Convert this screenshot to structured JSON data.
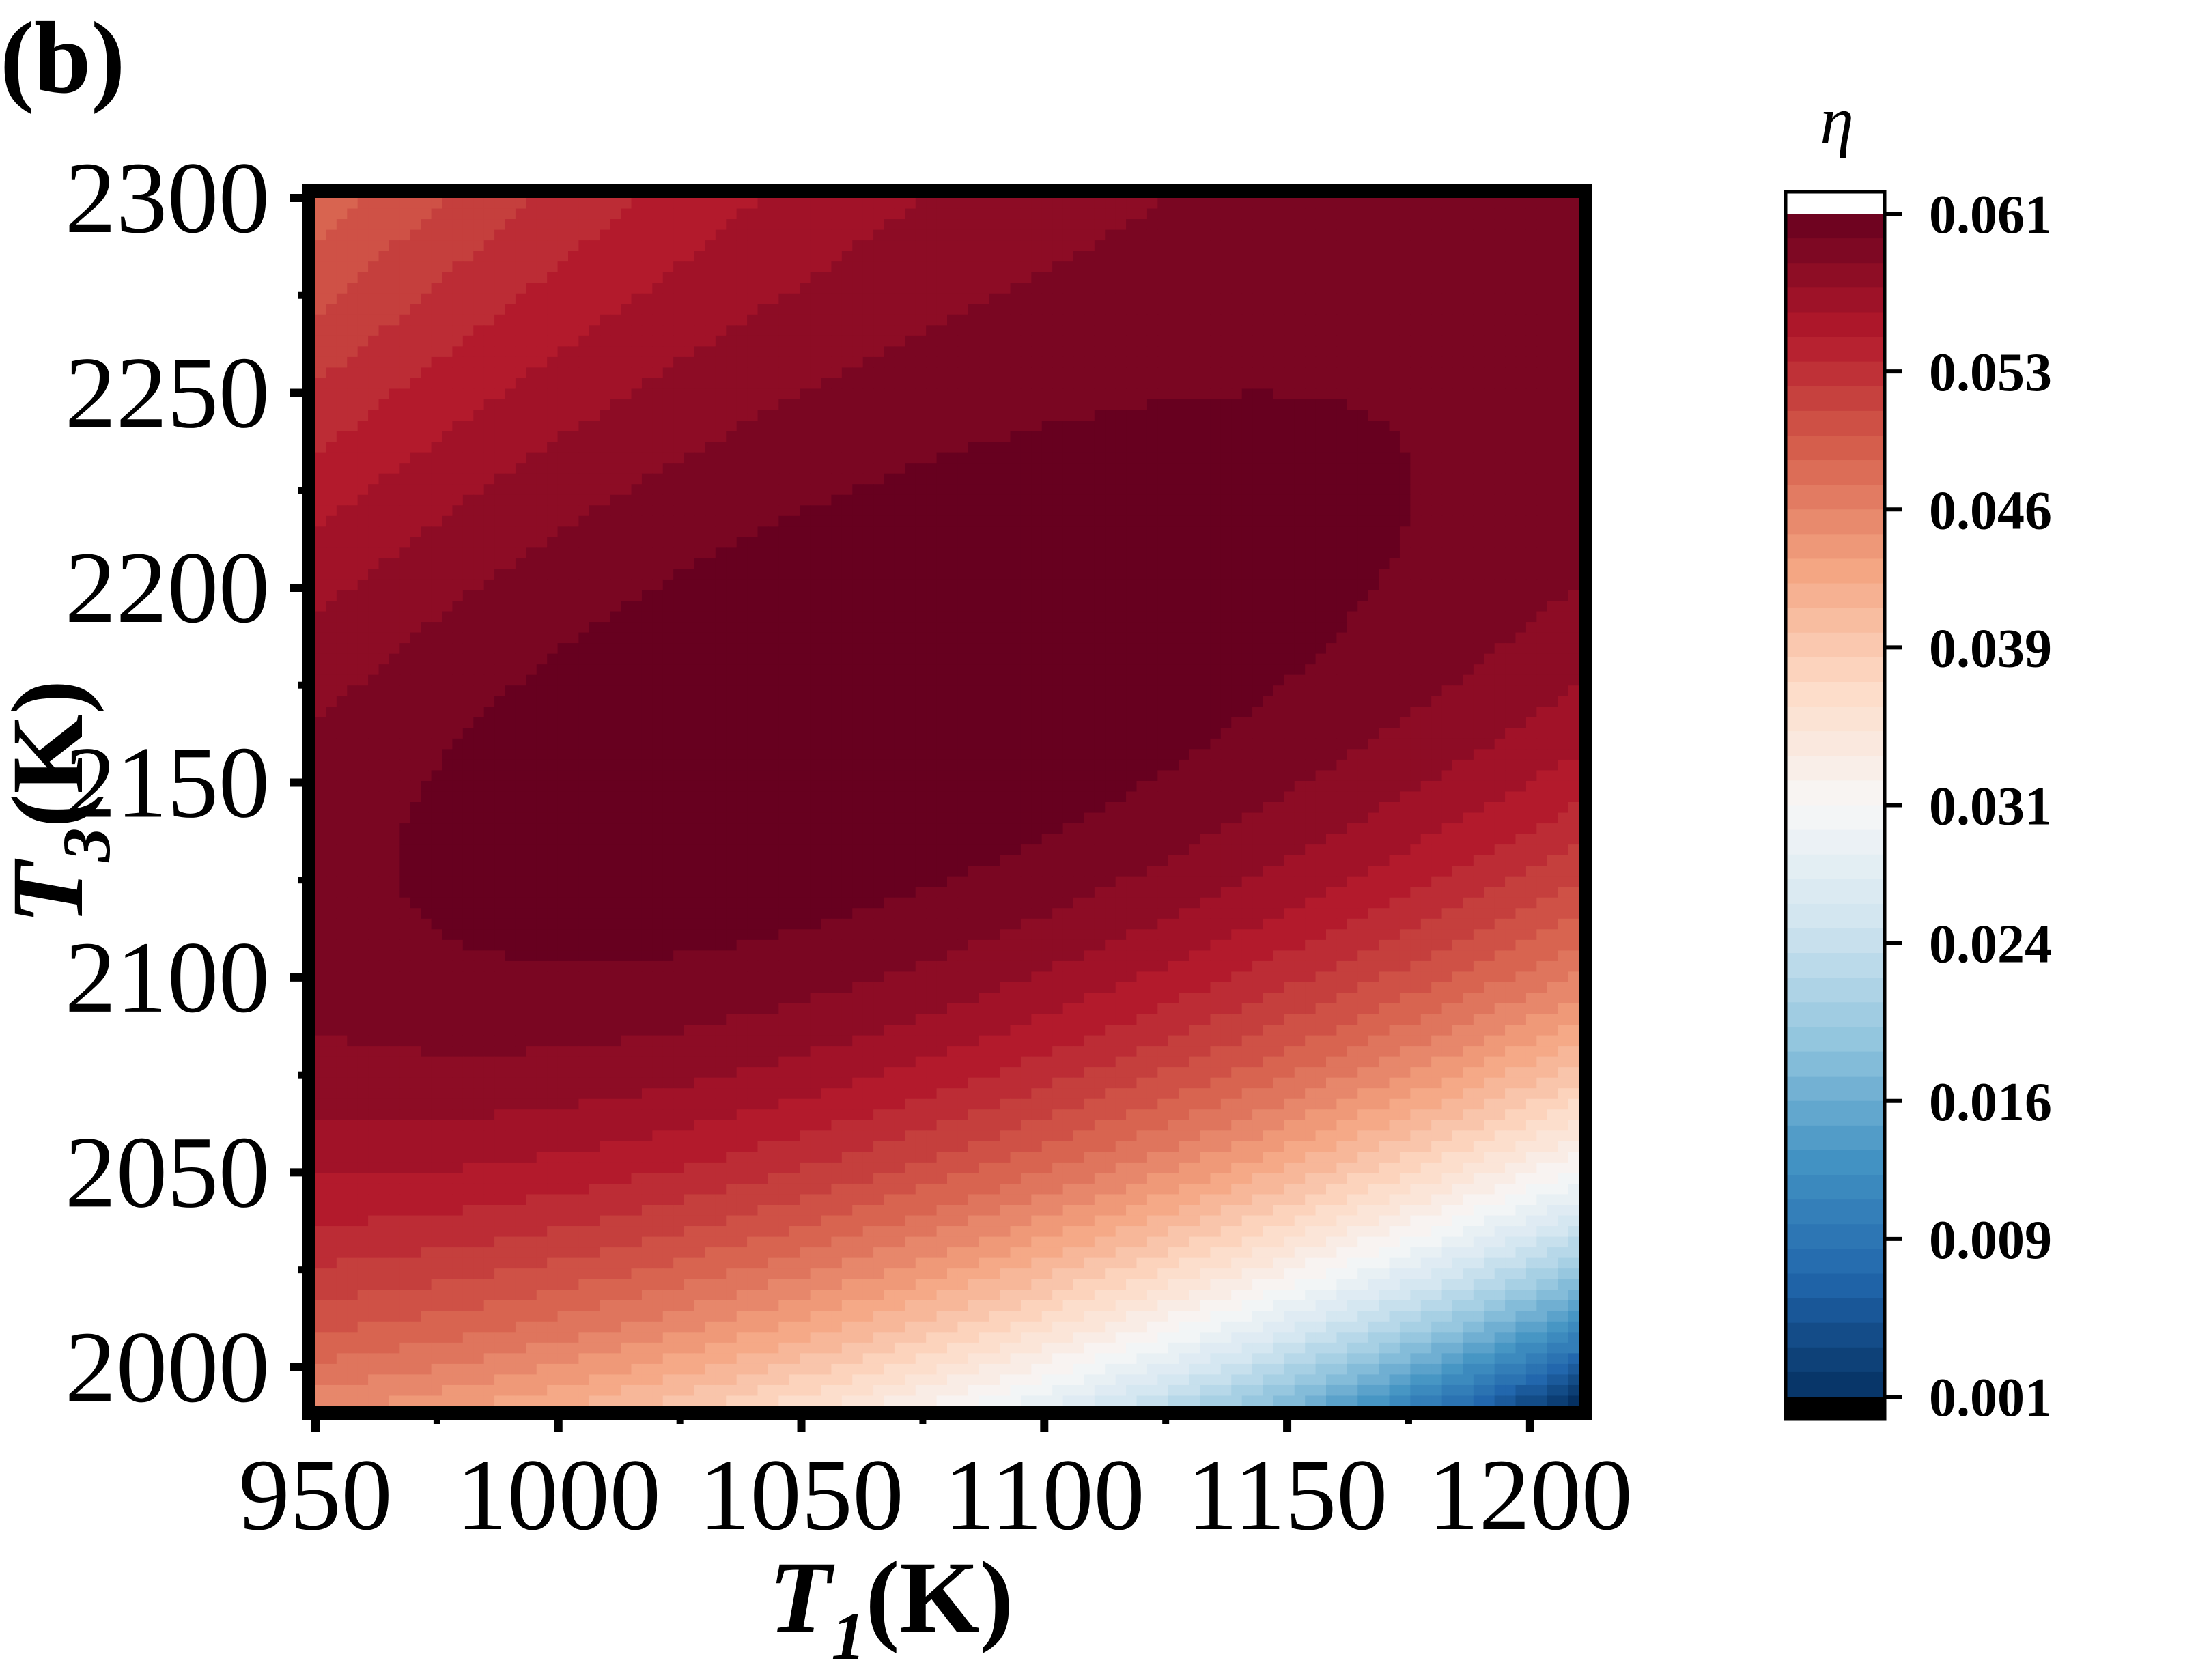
{
  "panel_label": "(b)",
  "chart_data": {
    "type": "heatmap",
    "title": "",
    "xlabel": {
      "var": "T",
      "sub": "1",
      "unit": "(K)"
    },
    "ylabel": {
      "var": "T",
      "sub": "3",
      "unit": "(K)"
    },
    "xlim": [
      950,
      1210
    ],
    "ylim": [
      1990,
      2300
    ],
    "x_ticks": [
      "950",
      "1000",
      "1050",
      "1100",
      "1150",
      "1200"
    ],
    "y_ticks": [
      "2000",
      "2050",
      "2100",
      "2150",
      "2200",
      "2250",
      "2300"
    ],
    "z_label": "η",
    "z_range": [
      0.001,
      0.061
    ],
    "colorbar_ticks": [
      "0.001",
      "0.009",
      "0.016",
      "0.024",
      "0.031",
      "0.039",
      "0.046",
      "0.053",
      "0.061"
    ],
    "peak": {
      "x": 1060,
      "y": 2165,
      "value": 0.061
    },
    "corners": [
      {
        "x": 950,
        "y": 1990,
        "value": 0.045
      },
      {
        "x": 950,
        "y": 2300,
        "value": 0.048
      },
      {
        "x": 1210,
        "y": 2300,
        "value": 0.059
      },
      {
        "x": 1210,
        "y": 1990,
        "value": 0.001
      }
    ],
    "colormap": [
      "#67001f",
      "#b2182b",
      "#d6604d",
      "#f4a582",
      "#fddbc7",
      "#f7f7f7",
      "#d1e5f0",
      "#92c5de",
      "#4393c3",
      "#2166ac",
      "#053061"
    ],
    "colorbar_over": "#ffffff",
    "colorbar_under": "#000000",
    "grid": false,
    "legend": "colorbar-right"
  }
}
